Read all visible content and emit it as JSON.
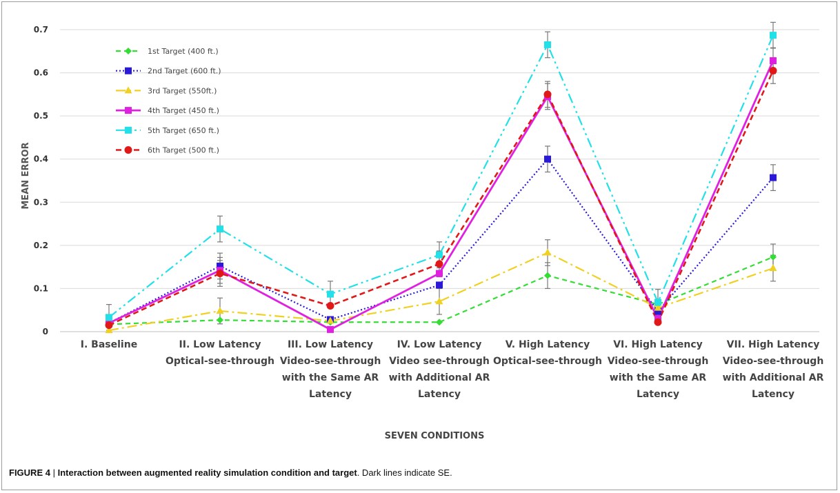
{
  "caption": {
    "label": "FIGURE 4",
    "separator": " | ",
    "title": "Interaction between augmented reality simulation condition and target",
    "rest": ". Dark lines indicate SE."
  },
  "chart_data": {
    "type": "line",
    "xlabel": "SEVEN CONDITIONS",
    "ylabel": "MEAN ERROR",
    "ylim": [
      0,
      0.7
    ],
    "yticks": [
      "0",
      "0.1",
      "0.2",
      "0.3",
      "0.4",
      "0.5",
      "0.6",
      "0.7"
    ],
    "grid": true,
    "legend_position": "top-left",
    "categories": [
      [
        "I. Baseline"
      ],
      [
        "II. Low Latency",
        "Optical-see-through"
      ],
      [
        "III. Low Latency",
        "Video-see-through",
        "with the Same AR",
        "Latency"
      ],
      [
        "IV. Low Latency",
        "Video see-through",
        "with Additional AR",
        "Latency"
      ],
      [
        "V. High Latency",
        "Optical-see-through"
      ],
      [
        "VI. High Latency",
        "Video-see-through",
        "with the Same AR",
        "Latency"
      ],
      [
        "VII. High Latency",
        "Video-see-through",
        "with Additional AR",
        "Latency"
      ]
    ],
    "series": [
      {
        "name": "1st Target (400 ft.)",
        "color": "#33dd33",
        "marker": "diamond",
        "dash": "7,5",
        "width": 2.2,
        "values": [
          0.017,
          0.027,
          0.022,
          0.022,
          0.13,
          0.063,
          0.173
        ],
        "err": [
          0.0,
          0.0,
          0.0,
          0.0,
          0.03,
          0.0,
          0.03
        ]
      },
      {
        "name": "2nd Target (600 ft.)",
        "color": "#2a1ad8",
        "marker": "square",
        "dash": "2,3",
        "width": 2.2,
        "values": [
          0.02,
          0.152,
          0.028,
          0.108,
          0.4,
          0.047,
          0.357
        ],
        "err": [
          0.0,
          0.03,
          0.0,
          0.0,
          0.03,
          0.0,
          0.03
        ]
      },
      {
        "name": "3rd Target (550ft.)",
        "color": "#f0d020",
        "marker": "triangle",
        "dash": "14,5,3,5",
        "width": 2.2,
        "values": [
          0.003,
          0.048,
          0.025,
          0.07,
          0.183,
          0.055,
          0.147
        ],
        "err": [
          0.0,
          0.03,
          0.0,
          0.03,
          0.03,
          0.0,
          0.03
        ]
      },
      {
        "name": "4th Target (450 ft.)",
        "color": "#e020e0",
        "marker": "square",
        "dash": "",
        "width": 2.8,
        "values": [
          0.02,
          0.142,
          0.005,
          0.135,
          0.545,
          0.03,
          0.628
        ],
        "err": [
          0.0,
          0.03,
          0.0,
          0.0,
          0.03,
          0.0,
          0.03
        ]
      },
      {
        "name": "5th Target (650 ft.)",
        "color": "#22e0e8",
        "marker": "square",
        "dash": "14,5,3,5,3,5",
        "width": 2.2,
        "values": [
          0.033,
          0.238,
          0.087,
          0.178,
          0.665,
          0.068,
          0.687
        ],
        "err": [
          0.03,
          0.03,
          0.03,
          0.03,
          0.03,
          0.03,
          0.03
        ]
      },
      {
        "name": "6th Target (500 ft.)",
        "color": "#e01818",
        "marker": "circle",
        "dash": "8,5",
        "width": 2.6,
        "values": [
          0.015,
          0.135,
          0.06,
          0.157,
          0.55,
          0.022,
          0.605
        ],
        "err": [
          0.0,
          0.03,
          0.0,
          0.03,
          0.03,
          0.0,
          0.03
        ]
      }
    ]
  }
}
